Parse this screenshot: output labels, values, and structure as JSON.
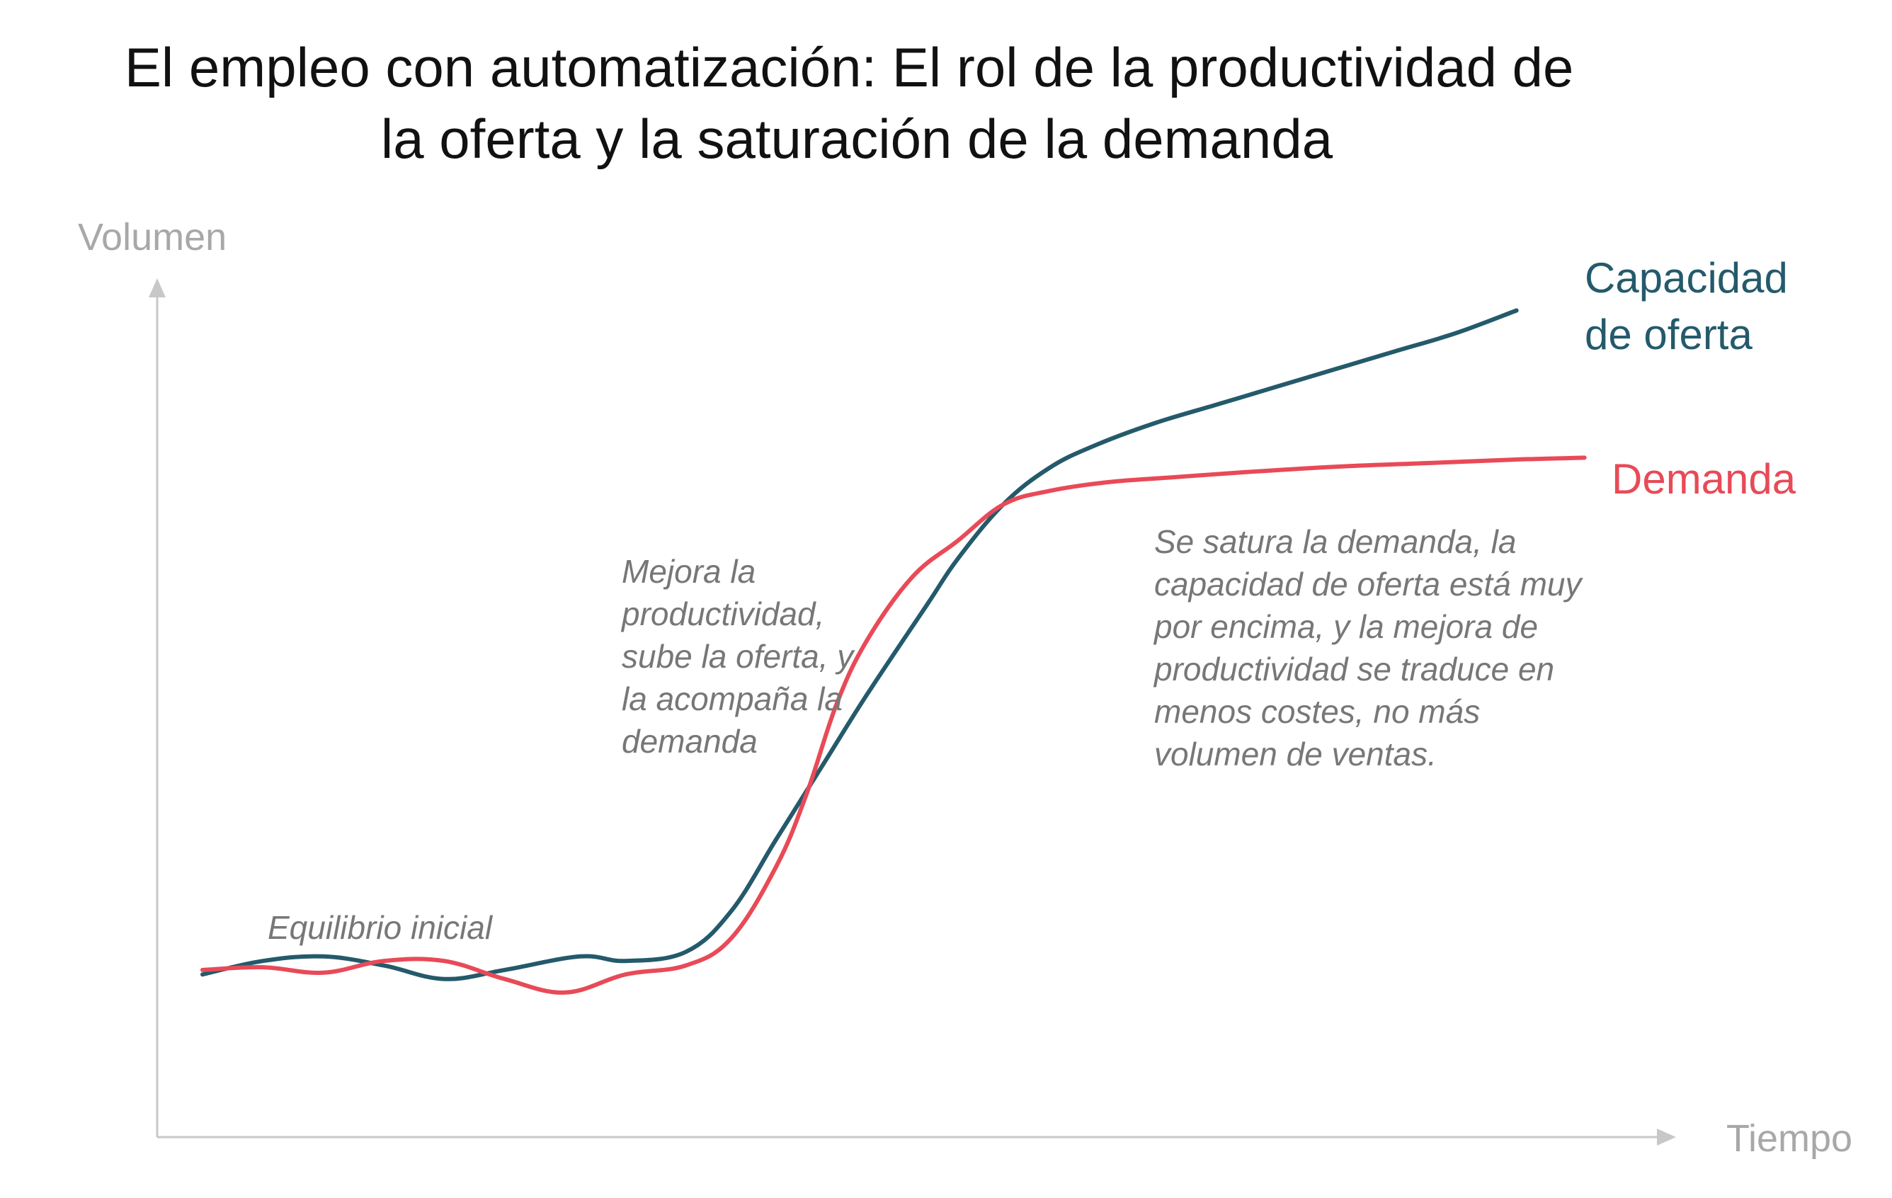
{
  "chart_data": {
    "type": "line",
    "title": "El empleo con automatización: El rol de la productividad de la oferta y la saturación de la demanda",
    "title_lines": [
      "El empleo con automatización: El rol de la productividad de",
      "la oferta y la saturación de la demanda"
    ],
    "xlabel": "Tiempo",
    "ylabel": "Volumen",
    "xlim": [
      0,
      100
    ],
    "ylim": [
      0,
      100
    ],
    "grid": false,
    "series": [
      {
        "name": "Capacidad de oferta",
        "label_lines": [
          "Capacidad",
          "de oferta"
        ],
        "color": "#245a6b",
        "points": [
          [
            3,
            18
          ],
          [
            7,
            19.5
          ],
          [
            11,
            20
          ],
          [
            15,
            19
          ],
          [
            19,
            17.5
          ],
          [
            23,
            18.5
          ],
          [
            28,
            20
          ],
          [
            31,
            19.5
          ],
          [
            35,
            20.5
          ],
          [
            38,
            25
          ],
          [
            41,
            33
          ],
          [
            44,
            41
          ],
          [
            47,
            49
          ],
          [
            51,
            59
          ],
          [
            53,
            64
          ],
          [
            56,
            70
          ],
          [
            59,
            74
          ],
          [
            62,
            76.5
          ],
          [
            66,
            79
          ],
          [
            70,
            81
          ],
          [
            74,
            83
          ],
          [
            78,
            85
          ],
          [
            82,
            87
          ],
          [
            86,
            89
          ],
          [
            90,
            91.5
          ]
        ]
      },
      {
        "name": "Demanda",
        "label_lines": [
          "Demanda"
        ],
        "color": "#e84a57",
        "points": [
          [
            3,
            18.5
          ],
          [
            7,
            18.8
          ],
          [
            11,
            18.2
          ],
          [
            15,
            19.5
          ],
          [
            19,
            19.5
          ],
          [
            23,
            17.5
          ],
          [
            27,
            16
          ],
          [
            31,
            18
          ],
          [
            35,
            19
          ],
          [
            38,
            22
          ],
          [
            41,
            30
          ],
          [
            43,
            38
          ],
          [
            45,
            48
          ],
          [
            47,
            55
          ],
          [
            50,
            62
          ],
          [
            53,
            66
          ],
          [
            56,
            70
          ],
          [
            59,
            71.5
          ],
          [
            63,
            72.5
          ],
          [
            67,
            73
          ],
          [
            72,
            73.6
          ],
          [
            78,
            74.2
          ],
          [
            84,
            74.6
          ],
          [
            90,
            75
          ],
          [
            94.5,
            75.2
          ]
        ]
      }
    ],
    "annotations": [
      {
        "id": "equilibrio",
        "x": 10,
        "y": 26,
        "lines": [
          "Equilibrio inicial"
        ]
      },
      {
        "id": "mejora",
        "x": 35,
        "y": 66,
        "lines": [
          "Mejora la",
          "productividad,",
          "sube la oferta, y",
          "la acompaña la",
          "demanda"
        ]
      },
      {
        "id": "satura",
        "x": 69,
        "y": 71,
        "lines": [
          "Se satura la demanda, la",
          "capacidad de oferta está muy",
          "por encima, y la mejora de",
          "productividad se traduce en",
          "menos costes, no más",
          "volumen de ventas."
        ]
      }
    ]
  },
  "colors": {
    "axis": "#c8c8c8",
    "axis_text": "#a8a8a8",
    "title": "#111111",
    "annotation": "#777777"
  }
}
